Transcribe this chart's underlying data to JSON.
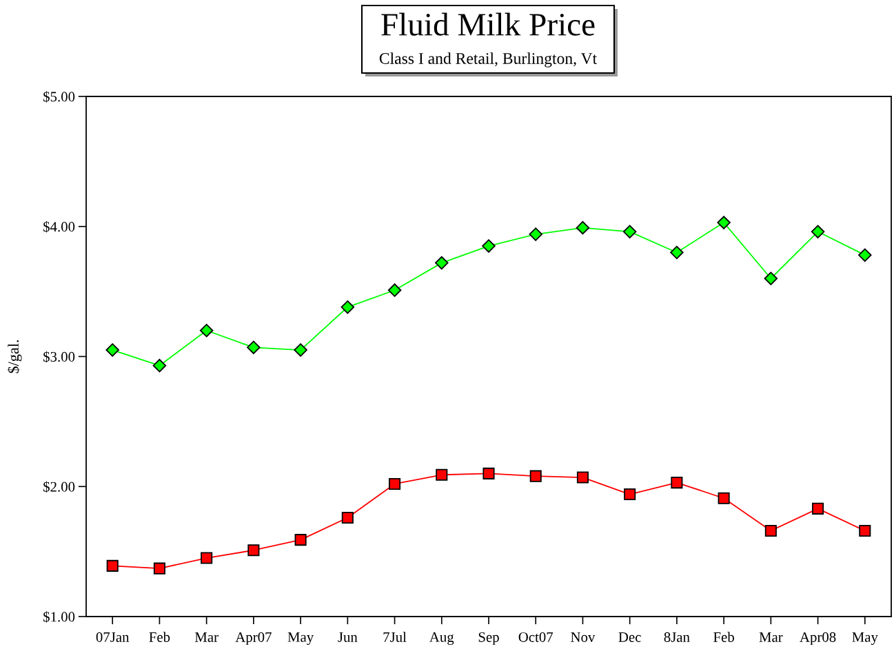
{
  "chart_data": {
    "type": "line",
    "title": "Fluid Milk Price",
    "subtitle": "Class I and Retail, Burlington, Vt",
    "ylabel": "$/gal.",
    "categories": [
      "07Jan",
      "Feb",
      "Mar",
      "Apr07",
      "May",
      "Jun",
      "7Jul",
      "Aug",
      "Sep",
      "Oct07",
      "Nov",
      "Dec",
      "8Jan",
      "Feb",
      "Mar",
      "Apr08",
      "May"
    ],
    "series": [
      {
        "color": "#00ff00",
        "marker": "diamond",
        "values": [
          3.05,
          2.93,
          3.2,
          3.07,
          3.05,
          3.38,
          3.51,
          3.72,
          3.85,
          3.94,
          3.99,
          3.96,
          3.8,
          4.03,
          3.6,
          3.96,
          3.78
        ]
      },
      {
        "color": "#ff0000",
        "marker": "square",
        "values": [
          1.39,
          1.37,
          1.45,
          1.51,
          1.59,
          1.76,
          2.02,
          2.09,
          2.1,
          2.08,
          2.07,
          1.94,
          2.03,
          1.91,
          1.66,
          1.83,
          1.66
        ]
      }
    ],
    "ylim": [
      1.0,
      5.0
    ],
    "yticks": [
      {
        "value": 1.0,
        "label": "$1.00"
      },
      {
        "value": 2.0,
        "label": "$2.00"
      },
      {
        "value": 3.0,
        "label": "$3.00"
      },
      {
        "value": 4.0,
        "label": "$4.00"
      },
      {
        "value": 5.0,
        "label": "$5.00"
      }
    ],
    "grid": false,
    "line_style": "solid"
  }
}
